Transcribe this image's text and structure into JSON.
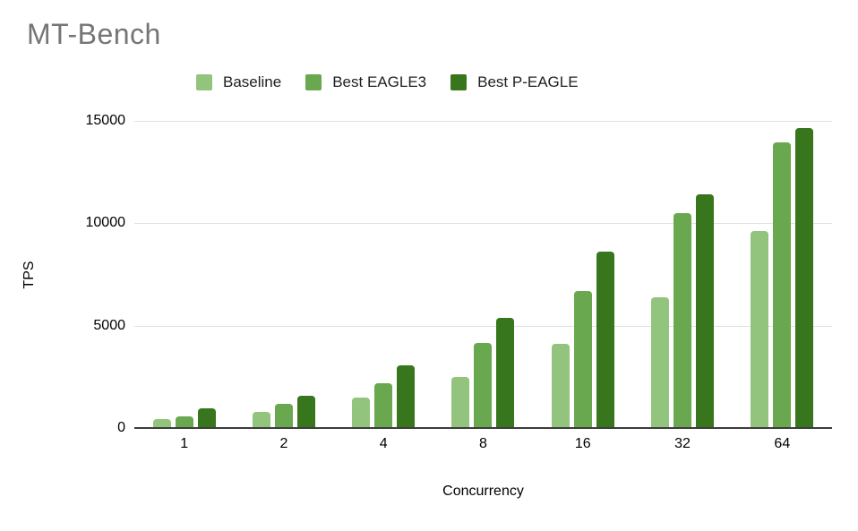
{
  "title": "MT-Bench",
  "chart_data": {
    "type": "bar",
    "title": "MT-Bench",
    "xlabel": "Concurrency",
    "ylabel": "TPS",
    "categories": [
      "1",
      "2",
      "4",
      "8",
      "16",
      "32",
      "64"
    ],
    "series": [
      {
        "name": "Baseline",
        "color": "#93c47d",
        "values": [
          430,
          800,
          1500,
          2500,
          4100,
          6400,
          9600
        ]
      },
      {
        "name": "Best EAGLE3",
        "color": "#6aa84f",
        "values": [
          590,
          1200,
          2200,
          4150,
          6700,
          10500,
          13950
        ]
      },
      {
        "name": "Best P-EAGLE",
        "color": "#38761d",
        "values": [
          950,
          1570,
          3050,
          5400,
          8600,
          11400,
          14650
        ]
      }
    ],
    "ylim": [
      0,
      15000
    ],
    "yticks": [
      0,
      5000,
      10000,
      15000
    ],
    "grid": true,
    "legend_position": "top"
  },
  "styles": {
    "title_color": "#757575",
    "gridline_color": "#e0e0e0",
    "axis_line_color": "#3c3c3c",
    "text_color": "#000000",
    "background": "#ffffff"
  }
}
